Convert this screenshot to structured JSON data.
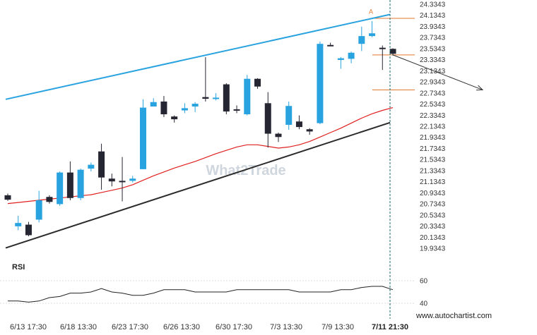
{
  "chart_data": {
    "type": "candlestick",
    "y_ticks": [
      "24.3343",
      "24.1343",
      "23.9343",
      "23.7343",
      "23.5343",
      "23.3343",
      "23.1343",
      "22.9343",
      "22.7343",
      "22.5343",
      "22.3343",
      "22.1343",
      "21.9343",
      "21.7343",
      "21.5343",
      "21.3343",
      "21.1343",
      "20.9343",
      "20.7343",
      "20.5343",
      "20.3343",
      "20.1343",
      "19.9343"
    ],
    "x_ticks": [
      "6/13 17:30",
      "6/18 13:30",
      "6/23 17:30",
      "6/26 13:30",
      "6/30 17:30",
      "7/3 13:30",
      "7/9 13:30",
      "7/11 21:30"
    ],
    "ylim": [
      19.9343,
      24.3343
    ],
    "candles": [
      {
        "o": 20.89,
        "h": 20.92,
        "l": 20.79,
        "c": 20.81,
        "up": false
      },
      {
        "o": 20.33,
        "h": 20.52,
        "l": 20.26,
        "c": 20.39,
        "up": true
      },
      {
        "o": 20.36,
        "h": 20.41,
        "l": 20.15,
        "c": 20.17,
        "up": false
      },
      {
        "o": 20.45,
        "h": 20.97,
        "l": 20.4,
        "c": 20.8,
        "up": true
      },
      {
        "o": 20.86,
        "h": 20.89,
        "l": 20.74,
        "c": 20.77,
        "up": false
      },
      {
        "o": 20.73,
        "h": 21.32,
        "l": 20.7,
        "c": 21.3,
        "up": true
      },
      {
        "o": 21.3,
        "h": 21.5,
        "l": 20.8,
        "c": 20.84,
        "up": false
      },
      {
        "o": 20.84,
        "h": 21.37,
        "l": 20.8,
        "c": 21.35,
        "up": true
      },
      {
        "o": 21.37,
        "h": 21.48,
        "l": 21.32,
        "c": 21.44,
        "up": true
      },
      {
        "o": 21.68,
        "h": 21.82,
        "l": 20.99,
        "c": 21.21,
        "up": false
      },
      {
        "o": 21.19,
        "h": 21.28,
        "l": 21.05,
        "c": 21.14,
        "up": false
      },
      {
        "o": 21.15,
        "h": 21.58,
        "l": 20.78,
        "c": 21.13,
        "up": false
      },
      {
        "o": 21.15,
        "h": 21.24,
        "l": 21.12,
        "c": 21.19,
        "up": true
      },
      {
        "o": 21.36,
        "h": 22.62,
        "l": 21.36,
        "c": 22.47,
        "up": true
      },
      {
        "o": 22.49,
        "h": 22.64,
        "l": 22.49,
        "c": 22.57,
        "up": true
      },
      {
        "o": 22.58,
        "h": 22.68,
        "l": 22.3,
        "c": 22.35,
        "up": false
      },
      {
        "o": 22.31,
        "h": 22.33,
        "l": 22.2,
        "c": 22.26,
        "up": false
      },
      {
        "o": 22.42,
        "h": 22.55,
        "l": 22.37,
        "c": 22.46,
        "up": true
      },
      {
        "o": 22.49,
        "h": 22.57,
        "l": 22.39,
        "c": 22.54,
        "up": true
      },
      {
        "o": 22.66,
        "h": 23.38,
        "l": 22.58,
        "c": 22.63,
        "up": false
      },
      {
        "o": 22.63,
        "h": 22.73,
        "l": 22.6,
        "c": 22.65,
        "up": true
      },
      {
        "o": 22.89,
        "h": 22.91,
        "l": 22.35,
        "c": 22.4,
        "up": false
      },
      {
        "o": 22.42,
        "h": 22.51,
        "l": 22.37,
        "c": 22.44,
        "up": false
      },
      {
        "o": 22.35,
        "h": 23.06,
        "l": 22.33,
        "c": 22.99,
        "up": true
      },
      {
        "o": 22.99,
        "h": 23.0,
        "l": 22.81,
        "c": 22.85,
        "up": false
      },
      {
        "o": 22.55,
        "h": 22.75,
        "l": 21.75,
        "c": 22.0,
        "up": false
      },
      {
        "o": 22.0,
        "h": 22.02,
        "l": 21.85,
        "c": 21.94,
        "up": false
      },
      {
        "o": 22.16,
        "h": 22.58,
        "l": 22.07,
        "c": 22.5,
        "up": true
      },
      {
        "o": 22.22,
        "h": 22.33,
        "l": 22.08,
        "c": 22.12,
        "up": false
      },
      {
        "o": 22.08,
        "h": 22.1,
        "l": 21.98,
        "c": 22.04,
        "up": false
      },
      {
        "o": 22.19,
        "h": 23.66,
        "l": 22.17,
        "c": 23.62,
        "up": true
      },
      {
        "o": 23.6,
        "h": 23.64,
        "l": 23.58,
        "c": 23.6,
        "up": false
      },
      {
        "o": 23.33,
        "h": 23.38,
        "l": 23.17,
        "c": 23.36,
        "up": true
      },
      {
        "o": 23.35,
        "h": 23.48,
        "l": 23.27,
        "c": 23.46,
        "up": true
      },
      {
        "o": 23.62,
        "h": 23.93,
        "l": 23.49,
        "c": 23.76,
        "up": true
      },
      {
        "o": 23.76,
        "h": 24.03,
        "l": 23.74,
        "c": 23.81,
        "up": true
      },
      {
        "o": 23.55,
        "h": 23.59,
        "l": 23.15,
        "c": 23.53,
        "up": false
      },
      {
        "o": 23.53,
        "h": 23.54,
        "l": 23.41,
        "c": 23.44,
        "up": false
      }
    ],
    "ma": [
      20.74,
      20.76,
      20.78,
      20.8,
      20.82,
      20.84,
      20.86,
      20.88,
      20.9,
      20.94,
      20.98,
      21.02,
      21.08,
      21.16,
      21.24,
      21.31,
      21.38,
      21.44,
      21.5,
      21.57,
      21.64,
      21.7,
      21.76,
      21.8,
      21.8,
      21.77,
      21.74,
      21.76,
      21.8,
      21.86,
      21.94,
      22.02,
      22.1,
      22.19,
      22.28,
      22.36,
      22.42,
      22.47
    ],
    "resistance_line": {
      "from": 22.62,
      "to": 24.15
    },
    "support_line": {
      "from": 19.94,
      "to": 22.2
    },
    "level_upper": 24.08,
    "level_middle": 23.42,
    "level_lower": 22.79,
    "pattern_marker": "A",
    "rsi": {
      "label": "RSI",
      "ticks": [
        "60",
        "40"
      ],
      "ylim": [
        30,
        70
      ],
      "values": [
        42,
        42,
        41,
        42,
        45,
        46,
        49,
        49,
        50,
        53,
        50,
        49,
        47,
        47,
        49,
        52,
        52,
        52,
        50,
        50,
        50,
        50,
        52,
        52,
        52,
        52,
        52,
        52,
        50,
        50,
        50,
        50,
        52,
        52,
        54,
        55,
        55,
        52
      ]
    },
    "watermark": "www.autochartist.com",
    "logo": "What2Trade",
    "colors": {
      "up_candle": "#29a3e0",
      "down_candle": "#262633",
      "resistance": "#29a3e0",
      "support": "#2b2b2b",
      "moving_average": "#e02020",
      "levels": "#e07830",
      "forecast_arrow": "#333333",
      "time_marker": "#1a6e6e"
    }
  }
}
